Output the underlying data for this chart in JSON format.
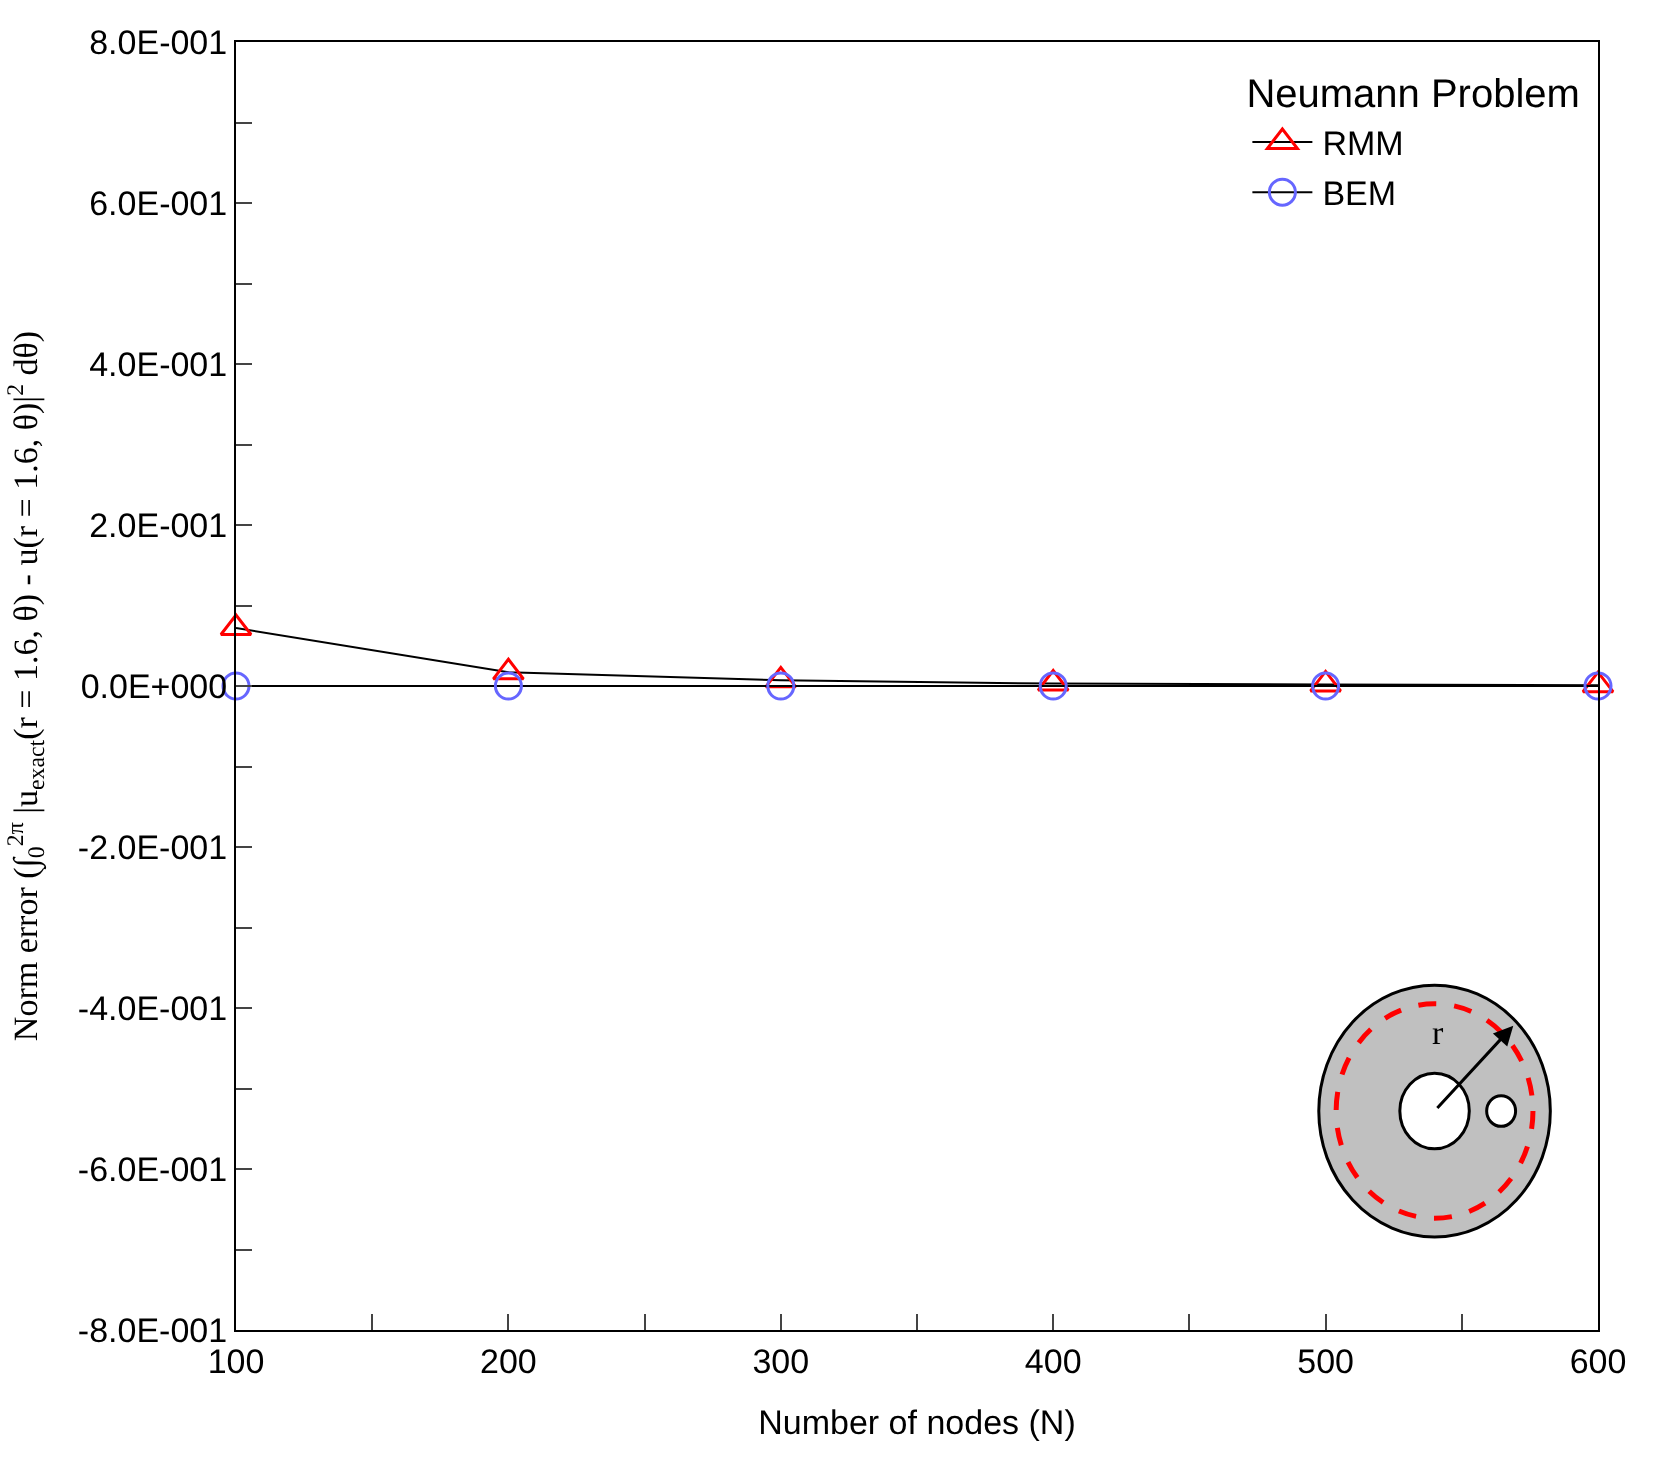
{
  "chart_data": {
    "type": "line",
    "xlabel": "Number of nodes (N)",
    "ylabel": "Norm error (∫$_{0}$$^{2π}$ |u$_{exact}$(r = 1.6, θ) - u(r = 1.6, θ)|$^{2}$ dθ)",
    "legend_title": "Neumann Problem",
    "x": [
      100,
      200,
      300,
      400,
      500,
      600
    ],
    "series": [
      {
        "name": "RMM",
        "color": "#ff0000",
        "marker": "triangle",
        "values": [
          0.072,
          0.017,
          0.007,
          0.003,
          0.002,
          0.001
        ]
      },
      {
        "name": "BEM",
        "color": "#6666ff",
        "marker": "circle",
        "values": [
          0.0,
          0.0,
          0.0,
          0.0,
          0.0,
          0.0
        ]
      }
    ],
    "xlim": [
      100,
      600
    ],
    "xticks": [
      100,
      {
        "value": 150,
        "label": null
      },
      200,
      {
        "value": 250,
        "label": null
      },
      300,
      {
        "value": 350,
        "label": null
      },
      400,
      {
        "value": 450,
        "label": null
      },
      500,
      {
        "value": 550,
        "label": null
      },
      600
    ],
    "ylim": [
      -0.8,
      0.8
    ],
    "yticks": [
      {
        "value": -0.8,
        "label": "-8.0E-001"
      },
      {
        "value": -0.7,
        "label": null
      },
      {
        "value": -0.6,
        "label": "-6.0E-001"
      },
      {
        "value": -0.5,
        "label": null
      },
      {
        "value": -0.4,
        "label": "-4.0E-001"
      },
      {
        "value": -0.3,
        "label": null
      },
      {
        "value": -0.2,
        "label": "-2.0E-001"
      },
      {
        "value": -0.1,
        "label": null
      },
      {
        "value": 0,
        "label": "0.0E+000"
      },
      {
        "value": 0.1,
        "label": null
      },
      {
        "value": 0.2,
        "label": "2.0E-001"
      },
      {
        "value": 0.3,
        "label": null
      },
      {
        "value": 0.4,
        "label": "4.0E-001"
      },
      {
        "value": 0.5,
        "label": null
      },
      {
        "value": 0.6,
        "label": "6.0E-001"
      },
      {
        "value": 0.7,
        "label": null
      },
      {
        "value": 0.8,
        "label": "8.0E-001"
      }
    ],
    "legend": "top right",
    "line_style": "solid",
    "annotations": [
      "r"
    ]
  }
}
